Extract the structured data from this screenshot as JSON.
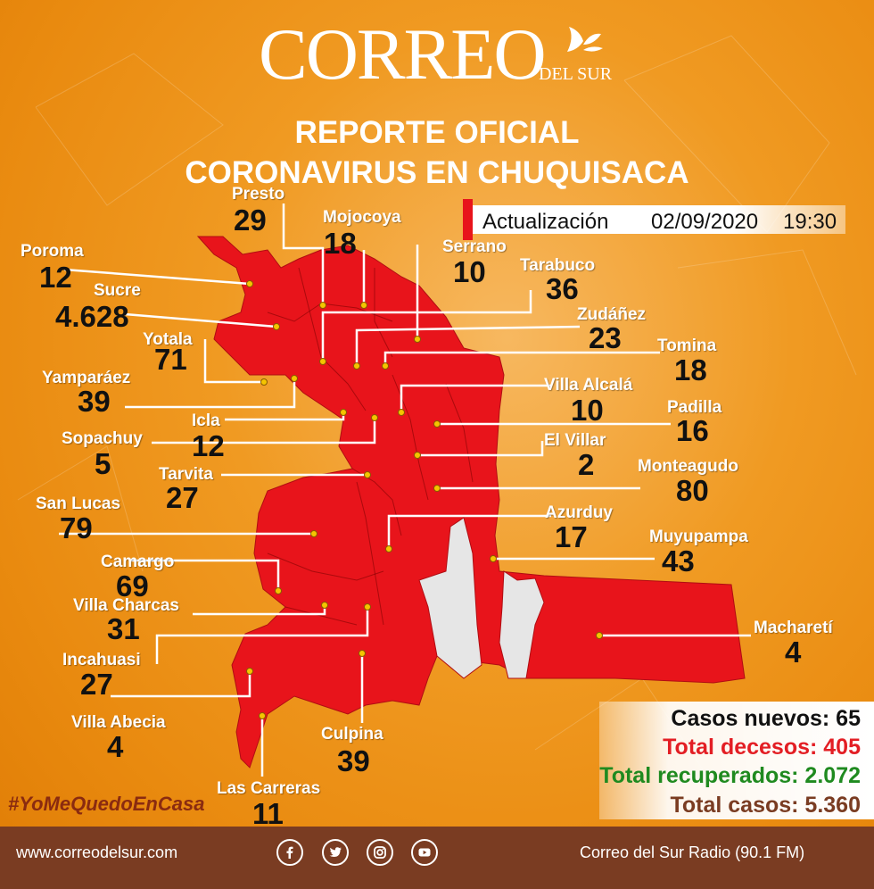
{
  "brand": {
    "name": "CORREO",
    "sub": "DEL SUR"
  },
  "title": {
    "line1": "REPORTE OFICIAL",
    "line2": "CORONAVIRUS EN CHUQUISACA"
  },
  "update": {
    "label": "Actualización",
    "date": "02/09/2020",
    "time": "19:30"
  },
  "municipalities": [
    {
      "name": "Presto",
      "value": "29"
    },
    {
      "name": "Mojocoya",
      "value": "18"
    },
    {
      "name": "Serrano",
      "value": "10"
    },
    {
      "name": "Poroma",
      "value": "12"
    },
    {
      "name": "Tarabuco",
      "value": "36"
    },
    {
      "name": "Sucre",
      "value": "4.628"
    },
    {
      "name": "Zudáñez",
      "value": "23"
    },
    {
      "name": "Yotala",
      "value": "71"
    },
    {
      "name": "Tomina",
      "value": "18"
    },
    {
      "name": "Yamparáez",
      "value": "39"
    },
    {
      "name": "Villa Alcalá",
      "value": "10"
    },
    {
      "name": "Icla",
      "value": "12"
    },
    {
      "name": "Padilla",
      "value": "16"
    },
    {
      "name": "Sopachuy",
      "value": "5"
    },
    {
      "name": "El Villar",
      "value": "2"
    },
    {
      "name": "Tarvita",
      "value": "27"
    },
    {
      "name": "Monteagudo",
      "value": "80"
    },
    {
      "name": "San Lucas",
      "value": "79"
    },
    {
      "name": "Azurduy",
      "value": "17"
    },
    {
      "name": "Muyupampa",
      "value": "43"
    },
    {
      "name": "Camargo",
      "value": "69"
    },
    {
      "name": "Villa Charcas",
      "value": "31"
    },
    {
      "name": "Macharetí",
      "value": "4"
    },
    {
      "name": "Incahuasi",
      "value": "27"
    },
    {
      "name": "Villa Abecia",
      "value": "4"
    },
    {
      "name": "Culpina",
      "value": "39"
    },
    {
      "name": "Las Carreras",
      "value": "11"
    }
  ],
  "stats": [
    {
      "label": "Casos nuevos: 65",
      "color": "#111111"
    },
    {
      "label": "Total decesos: 405",
      "color": "#e31e24"
    },
    {
      "label": "Total recuperados: 2.072",
      "color": "#1f8a1f"
    },
    {
      "label": "Total casos: 5.360",
      "color": "#7a3c22"
    }
  ],
  "hashtag": "#YoMeQuedoEnCasa",
  "footer": {
    "website": "www.correodelsur.com",
    "radio": "Correo del Sur Radio (90.1 FM)",
    "social_icons": [
      "facebook-icon",
      "twitter-icon",
      "instagram-icon",
      "youtube-icon"
    ]
  },
  "colors": {
    "background": "#f09a22",
    "map": "#e8141b",
    "footer": "#7a3c22"
  }
}
